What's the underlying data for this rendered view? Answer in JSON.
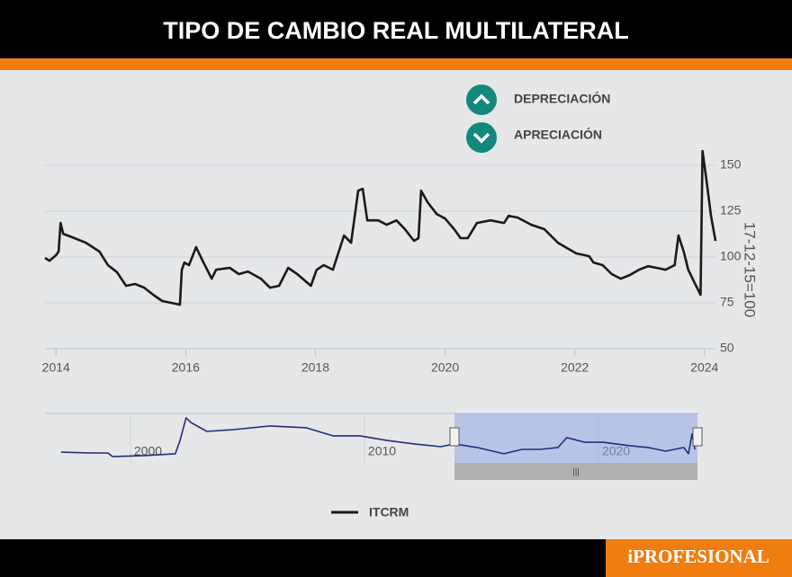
{
  "header": {
    "title": "TIPO DE CAMBIO REAL MULTILATERAL"
  },
  "footer": {
    "brand": "iPROFESIONAL"
  },
  "chart_data": [
    {
      "type": "line",
      "annotations": [
        "DEPRECIACIÓN",
        "APRECIACIÓN"
      ],
      "y_label": "17-12-15=100",
      "x": [
        2013.83,
        2013.9,
        2014.0,
        2014.04,
        2014.07,
        2014.11,
        2014.25,
        2014.46,
        2014.67,
        2014.8,
        2014.94,
        2015.08,
        2015.22,
        2015.36,
        2015.5,
        2015.64,
        2015.78,
        2015.91,
        2015.94,
        2015.98,
        2016.05,
        2016.16,
        2016.26,
        2016.4,
        2016.47,
        2016.68,
        2016.82,
        2016.96,
        2017.16,
        2017.3,
        2017.44,
        2017.58,
        2017.72,
        2017.93,
        2018.02,
        2018.13,
        2018.27,
        2018.44,
        2018.55,
        2018.66,
        2018.73,
        2018.8,
        2018.97,
        2019.1,
        2019.25,
        2019.38,
        2019.52,
        2019.59,
        2019.63,
        2019.73,
        2019.87,
        2020.0,
        2020.14,
        2020.24,
        2020.35,
        2020.49,
        2020.7,
        2020.91,
        2020.98,
        2021.12,
        2021.33,
        2021.53,
        2021.74,
        2022.02,
        2022.22,
        2022.29,
        2022.43,
        2022.57,
        2022.71,
        2022.85,
        2022.99,
        2023.13,
        2023.26,
        2023.4,
        2023.54,
        2023.6,
        2023.68,
        2023.75,
        2023.85,
        2023.94,
        2023.97,
        2024.03,
        2024.1,
        2024.17
      ],
      "series": [
        {
          "name": "ITCRM",
          "color": "#1a1a1a",
          "values": [
            99.5,
            98,
            101,
            103,
            118.6,
            112.7,
            110.8,
            107.8,
            103,
            95.6,
            91.7,
            84.3,
            85.3,
            83.3,
            79.4,
            76,
            75,
            74,
            93,
            97,
            95.6,
            105.4,
            98,
            88.2,
            93.1,
            94.1,
            90.7,
            92.1,
            88.2,
            83.3,
            84.3,
            94.1,
            90.7,
            84.3,
            93.1,
            95.6,
            93.1,
            111.7,
            107.8,
            136.2,
            137.2,
            120,
            120,
            117.6,
            120,
            115.2,
            108.8,
            110.3,
            136.2,
            129.9,
            123.5,
            121,
            115.2,
            110.3,
            110.3,
            118.6,
            120,
            118.6,
            122.5,
            121.5,
            117.6,
            115.2,
            107.8,
            102,
            100.5,
            97,
            95.6,
            90.7,
            88.2,
            90.2,
            93.1,
            95,
            94.1,
            93.1,
            95.6,
            111.7,
            103,
            93.1,
            85.8,
            79.4,
            157.8,
            142.1,
            122.5,
            108.8
          ]
        }
      ],
      "xlim": [
        2013.83,
        2024.17
      ],
      "xticks": [
        2014,
        2016,
        2018,
        2020,
        2022,
        2024
      ],
      "ylim": [
        50,
        175
      ],
      "yticks": [
        50,
        75,
        100,
        125,
        150
      ],
      "grid": true
    },
    {
      "type": "line",
      "x": [
        1997.04,
        1998.27,
        1999.04,
        1999.23,
        2000.58,
        2001.92,
        2002.12,
        2002.38,
        2002.58,
        2003.27,
        2004.42,
        2005.96,
        2007.5,
        2008.65,
        2009.81,
        2010.96,
        2012.12,
        2013.27,
        2013.85,
        2014.81,
        2015.96,
        2016.73,
        2017.5,
        2018.27,
        2018.65,
        2019.42,
        2020.19,
        2021.35,
        2022.12,
        2022.88,
        2023.65,
        2023.85,
        2024.0,
        2024.12
      ],
      "values": [
        65,
        60,
        60,
        38,
        44,
        55,
        136,
        273,
        245,
        191,
        202,
        224,
        213,
        164,
        164,
        136,
        115,
        98,
        115,
        93,
        55,
        82,
        82,
        93,
        153,
        125,
        125,
        104,
        93,
        71,
        93,
        55,
        175,
        82
      ],
      "color": "#1f2f7a",
      "xlim": [
        1996.35,
        2024.31
      ],
      "xticks": [
        2000,
        2010,
        2020
      ],
      "ylim": [
        0,
        300
      ],
      "grid": true
    }
  ]
}
